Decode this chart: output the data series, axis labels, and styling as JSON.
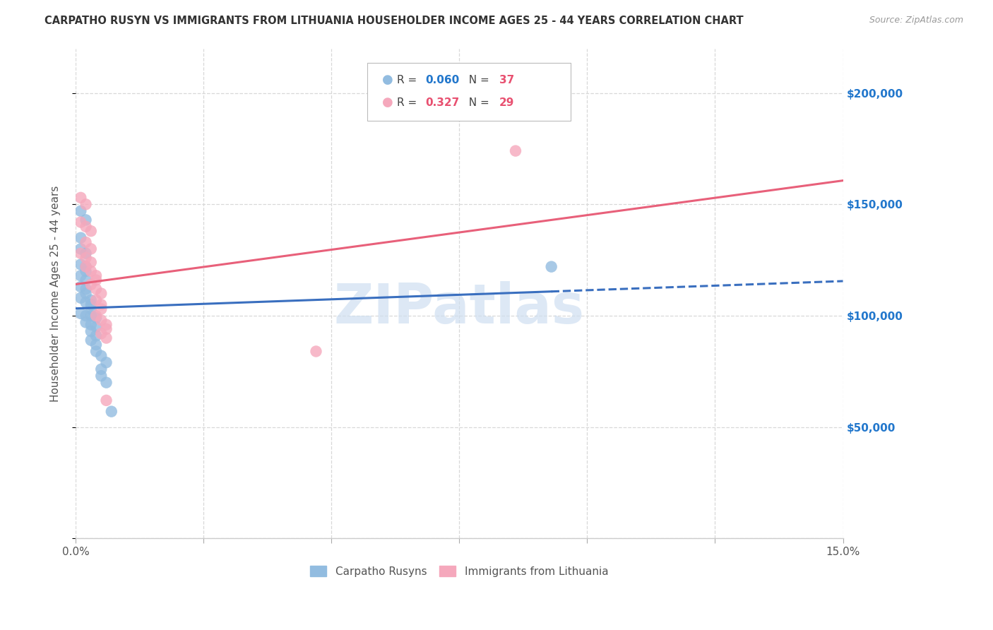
{
  "title": "CARPATHO RUSYN VS IMMIGRANTS FROM LITHUANIA HOUSEHOLDER INCOME AGES 25 - 44 YEARS CORRELATION CHART",
  "source": "Source: ZipAtlas.com",
  "ylabel": "Householder Income Ages 25 - 44 years",
  "xmin": 0.0,
  "xmax": 0.15,
  "ymin": 0,
  "ymax": 220000,
  "yticks": [
    0,
    50000,
    100000,
    150000,
    200000
  ],
  "ytick_labels": [
    "",
    "$50,000",
    "$100,000",
    "$150,000",
    "$200,000"
  ],
  "xtick_positions": [
    0.0,
    0.025,
    0.05,
    0.075,
    0.1,
    0.125,
    0.15
  ],
  "xtick_labels": [
    "0.0%",
    "",
    "",
    "",
    "",
    "",
    "15.0%"
  ],
  "watermark": "ZIPatlas",
  "blue_color": "#92bce0",
  "pink_color": "#f5a8bc",
  "blue_line_color": "#3a6fbf",
  "pink_line_color": "#e8607a",
  "blue_scatter": [
    [
      0.001,
      147000
    ],
    [
      0.002,
      143000
    ],
    [
      0.001,
      135000
    ],
    [
      0.001,
      130000
    ],
    [
      0.002,
      128000
    ],
    [
      0.001,
      123000
    ],
    [
      0.002,
      122000
    ],
    [
      0.002,
      120000
    ],
    [
      0.001,
      118000
    ],
    [
      0.002,
      116000
    ],
    [
      0.001,
      113000
    ],
    [
      0.002,
      112000
    ],
    [
      0.002,
      110000
    ],
    [
      0.001,
      108000
    ],
    [
      0.003,
      107000
    ],
    [
      0.002,
      106000
    ],
    [
      0.003,
      105000
    ],
    [
      0.003,
      103000
    ],
    [
      0.001,
      101000
    ],
    [
      0.002,
      100000
    ],
    [
      0.003,
      100000
    ],
    [
      0.004,
      99000
    ],
    [
      0.002,
      97000
    ],
    [
      0.003,
      96000
    ],
    [
      0.004,
      95000
    ],
    [
      0.003,
      93000
    ],
    [
      0.004,
      91000
    ],
    [
      0.003,
      89000
    ],
    [
      0.004,
      87000
    ],
    [
      0.004,
      84000
    ],
    [
      0.005,
      82000
    ],
    [
      0.006,
      79000
    ],
    [
      0.005,
      76000
    ],
    [
      0.005,
      73000
    ],
    [
      0.006,
      70000
    ],
    [
      0.007,
      57000
    ],
    [
      0.093,
      122000
    ]
  ],
  "pink_scatter": [
    [
      0.001,
      153000
    ],
    [
      0.002,
      150000
    ],
    [
      0.001,
      142000
    ],
    [
      0.002,
      140000
    ],
    [
      0.003,
      138000
    ],
    [
      0.002,
      133000
    ],
    [
      0.003,
      130000
    ],
    [
      0.001,
      128000
    ],
    [
      0.002,
      126000
    ],
    [
      0.003,
      124000
    ],
    [
      0.002,
      122000
    ],
    [
      0.003,
      120000
    ],
    [
      0.004,
      118000
    ],
    [
      0.004,
      116000
    ],
    [
      0.003,
      114000
    ],
    [
      0.004,
      112000
    ],
    [
      0.005,
      110000
    ],
    [
      0.004,
      107000
    ],
    [
      0.005,
      105000
    ],
    [
      0.005,
      103000
    ],
    [
      0.004,
      100000
    ],
    [
      0.005,
      98000
    ],
    [
      0.006,
      96000
    ],
    [
      0.006,
      94000
    ],
    [
      0.005,
      92000
    ],
    [
      0.006,
      90000
    ],
    [
      0.047,
      84000
    ],
    [
      0.086,
      174000
    ],
    [
      0.006,
      62000
    ]
  ],
  "blue_line_solid_end": 0.093,
  "background_color": "#ffffff",
  "grid_color": "#d8d8d8"
}
